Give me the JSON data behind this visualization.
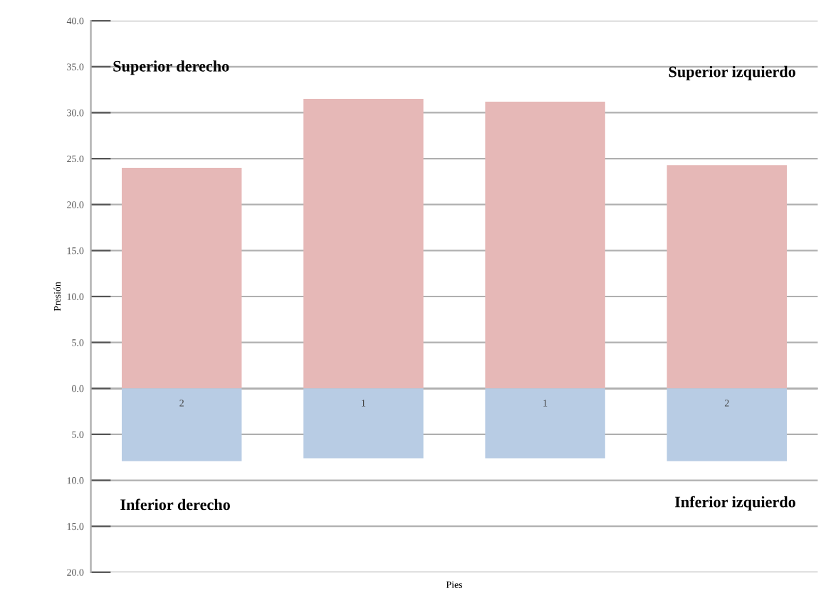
{
  "chart_data": {
    "type": "bar",
    "stacked": true,
    "xlabel": "Pies",
    "ylabel": "Presión",
    "categories": [
      "2",
      "1",
      "1",
      "2"
    ],
    "series": [
      {
        "color": "#e6b8b7",
        "values": [
          24.0,
          31.5,
          31.2,
          24.3
        ]
      },
      {
        "color": "#b8cce4",
        "values": [
          -7.9,
          -7.6,
          -7.6,
          -7.9
        ]
      }
    ],
    "ylim": [
      -20,
      40
    ],
    "yticks": [
      {
        "value": -20,
        "label": "20.0"
      },
      {
        "value": -15,
        "label": "15.0"
      },
      {
        "value": -10,
        "label": "10.0"
      },
      {
        "value": -5,
        "label": "5.0"
      },
      {
        "value": 0,
        "label": "0.0"
      },
      {
        "value": 5,
        "label": "5.0"
      },
      {
        "value": 10,
        "label": "10.0"
      },
      {
        "value": 15,
        "label": "15.0"
      },
      {
        "value": 20,
        "label": "20.0"
      },
      {
        "value": 25,
        "label": "25.0"
      },
      {
        "value": 30,
        "label": "30.0"
      },
      {
        "value": 35,
        "label": "35.0"
      },
      {
        "value": 40,
        "label": "40.0"
      }
    ],
    "grid": "y",
    "annotations": [
      "Superior derecho",
      "Superior izquierdo",
      "Inferior derecho",
      "Inferior izquierdo"
    ]
  }
}
